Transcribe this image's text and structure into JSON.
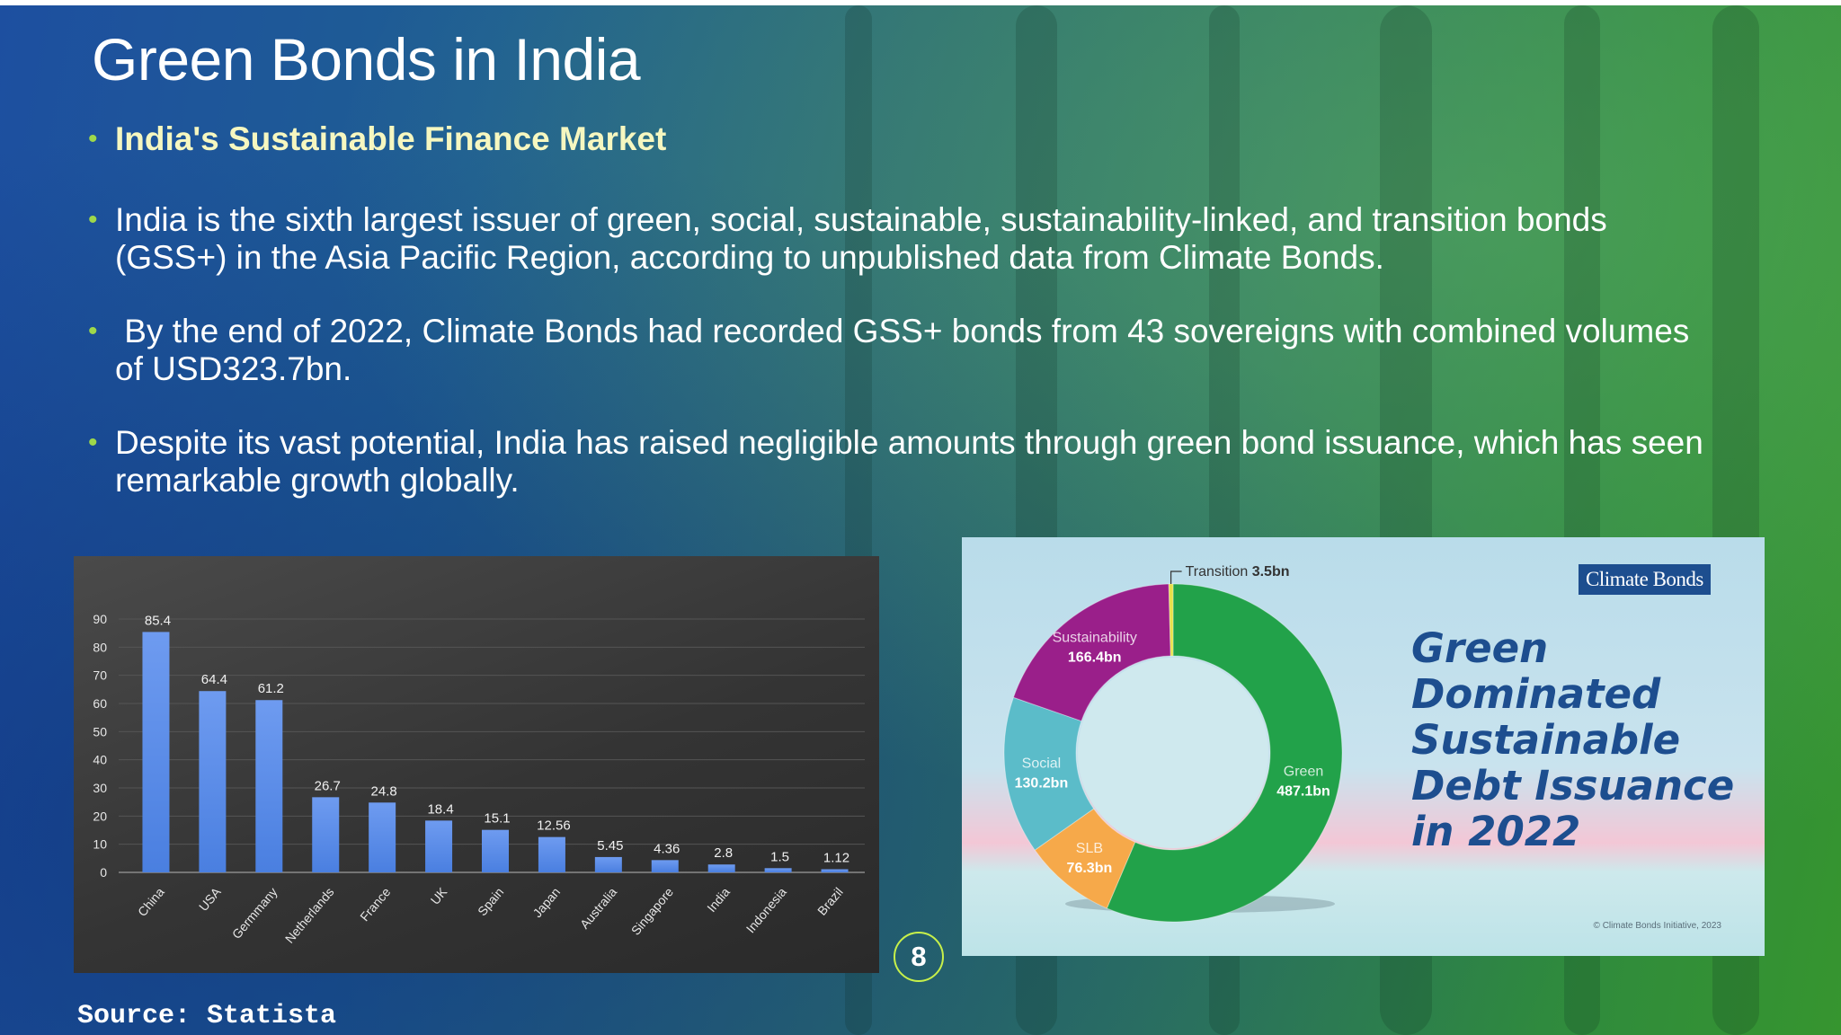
{
  "slide": {
    "title": "Green Bonds in India",
    "bullets": [
      "India's Sustainable Finance Market",
      "India is the sixth largest issuer of green, social, sustainable, sustainability-linked, and transition bonds (GSS+) in the Asia Pacific Region, according to unpublished data from Climate Bonds.",
      " By the end of 2022, Climate Bonds had recorded GSS+ bonds from 43 sovereigns with combined volumes of USD323.7bn.",
      "Despite its vast potential, India has raised negligible amounts through green bond issuance, which has seen remarkable growth globally."
    ],
    "bullet_symbol": "•",
    "page_number": "8",
    "source": "Source: Statista",
    "colors": {
      "accent_green": "#9ed84a",
      "heading_yellow": "#f6f7c0",
      "bar_blue": "#4a7fe0",
      "cb_blue": "#1d4e8f"
    }
  },
  "chart_data": [
    {
      "type": "bar",
      "categories": [
        "China",
        "USA",
        "Germany",
        "Netherlands",
        "France",
        "UK",
        "Spain",
        "Japan",
        "Australia",
        "Singapore",
        "India",
        "Indonesia",
        "Brazil"
      ],
      "category_labels": [
        "China",
        "USA",
        "Germmany",
        "Netherlands",
        "France",
        "UK",
        "Spain",
        "Japan",
        "Australia",
        "Singapore",
        "India",
        "Indonesia",
        "Brazil"
      ],
      "values": [
        85.4,
        64.4,
        61.2,
        26.7,
        24.8,
        18.4,
        15.1,
        12.56,
        5.45,
        4.36,
        2.8,
        1.5,
        1.12
      ],
      "value_labels": [
        "85.4",
        "64.4",
        "61.2",
        "26.7",
        "24.8",
        "18.4",
        "15.1",
        "12.56",
        "5.45",
        "4.36",
        "2.8",
        "1.5",
        "1.12"
      ],
      "ylim": [
        0,
        90
      ],
      "yticks": [
        0,
        10,
        20,
        30,
        40,
        50,
        60,
        70,
        80,
        90
      ],
      "grid": true,
      "title": "",
      "xlabel": "",
      "ylabel": ""
    },
    {
      "type": "pie",
      "style": "donut",
      "title_lines": [
        "Green",
        "Dominated",
        "Sustainable",
        "Debt Issuance",
        "in 2022"
      ],
      "logo": "Climate Bonds",
      "copyright": "© Climate Bonds Initiative, 2023",
      "slices": [
        {
          "label": "Green",
          "value": 487.1,
          "value_label": "487.1bn",
          "color": "#22a24a"
        },
        {
          "label": "SLB",
          "value": 76.3,
          "value_label": "76.3bn",
          "color": "#f6a94a"
        },
        {
          "label": "Social",
          "value": 130.2,
          "value_label": "130.2bn",
          "color": "#5bbcc9"
        },
        {
          "label": "Sustainability",
          "value": 166.4,
          "value_label": "166.4bn",
          "color": "#9a1f8a"
        },
        {
          "label": "Transition",
          "value": 3.5,
          "value_label": "3.5bn",
          "color": "#e8e04a"
        }
      ]
    }
  ]
}
